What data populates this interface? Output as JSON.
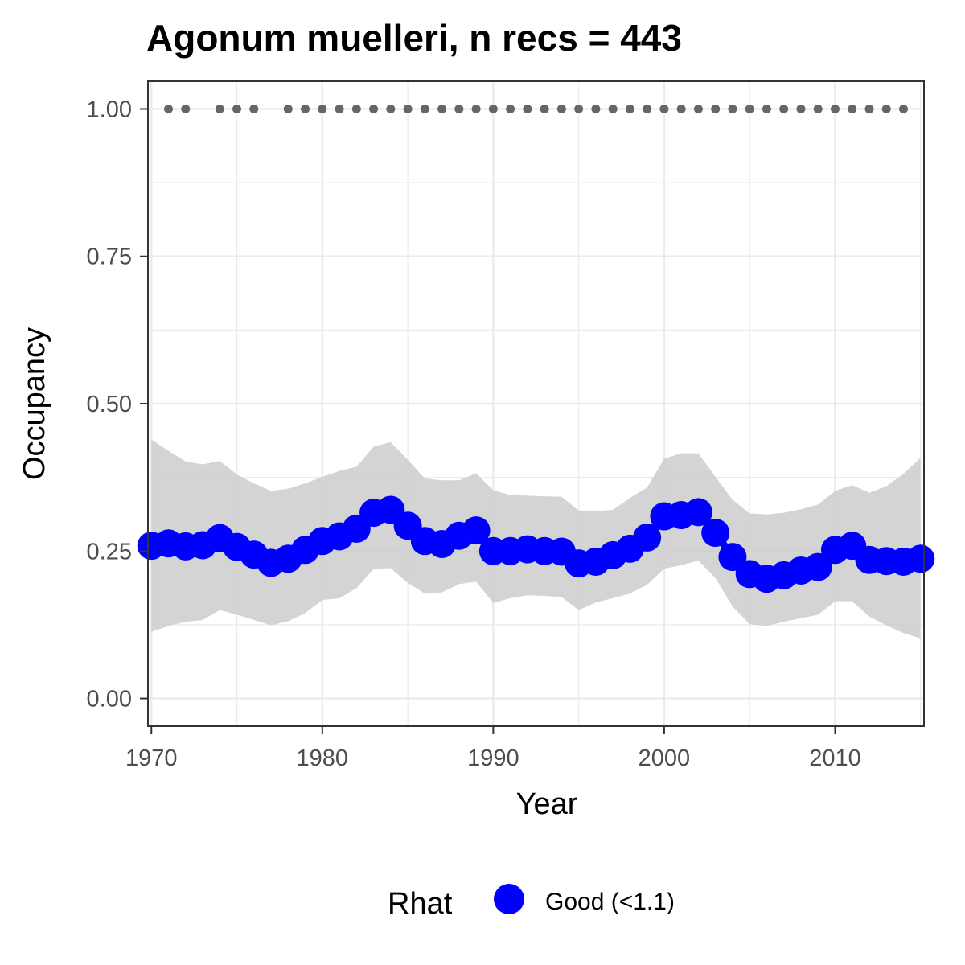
{
  "chart_data": {
    "type": "line",
    "title": "Agonum muelleri, n recs = 443",
    "xlabel": "Year",
    "ylabel": "Occupancy",
    "xlim": [
      1969.8,
      2015.2
    ],
    "ylim": [
      -0.047,
      1.047
    ],
    "x_ticks": [
      1970,
      1980,
      1990,
      2000,
      2010
    ],
    "y_ticks": [
      0.0,
      0.25,
      0.5,
      0.75,
      1.0
    ],
    "y_tick_labels": [
      "0.00",
      "0.25",
      "0.50",
      "0.75",
      "1.00"
    ],
    "grid": true,
    "legend": {
      "title": "Rhat",
      "placement": "bottom",
      "entries": [
        {
          "label": "Good (<1.1)",
          "color": "#0000ff"
        }
      ]
    },
    "series": [
      {
        "kind": "line-points",
        "color": "#0000ff",
        "x": [
          1970,
          1971,
          1972,
          1973,
          1974,
          1975,
          1976,
          1977,
          1978,
          1979,
          1980,
          1981,
          1982,
          1983,
          1984,
          1985,
          1986,
          1987,
          1988,
          1989,
          1990,
          1991,
          1992,
          1993,
          1994,
          1995,
          1996,
          1997,
          1998,
          1999,
          2000,
          2001,
          2002,
          2003,
          2004,
          2005,
          2006,
          2007,
          2008,
          2009,
          2010,
          2011,
          2012,
          2013,
          2014,
          2015
        ],
        "y": [
          0.259,
          0.263,
          0.258,
          0.26,
          0.272,
          0.257,
          0.244,
          0.23,
          0.237,
          0.252,
          0.267,
          0.275,
          0.288,
          0.315,
          0.32,
          0.293,
          0.267,
          0.262,
          0.276,
          0.285,
          0.25,
          0.25,
          0.253,
          0.25,
          0.249,
          0.229,
          0.232,
          0.243,
          0.254,
          0.273,
          0.309,
          0.311,
          0.316,
          0.281,
          0.24,
          0.211,
          0.203,
          0.209,
          0.217,
          0.223,
          0.252,
          0.259,
          0.235,
          0.233,
          0.232,
          0.237
        ],
        "lower": [
          0.113,
          0.123,
          0.13,
          0.133,
          0.15,
          0.142,
          0.133,
          0.124,
          0.131,
          0.145,
          0.167,
          0.17,
          0.187,
          0.22,
          0.221,
          0.196,
          0.178,
          0.18,
          0.194,
          0.198,
          0.162,
          0.17,
          0.175,
          0.174,
          0.172,
          0.15,
          0.163,
          0.17,
          0.178,
          0.193,
          0.22,
          0.226,
          0.234,
          0.204,
          0.156,
          0.126,
          0.123,
          0.13,
          0.136,
          0.142,
          0.165,
          0.165,
          0.139,
          0.124,
          0.111,
          0.102
        ],
        "upper": [
          0.439,
          0.42,
          0.402,
          0.397,
          0.403,
          0.38,
          0.365,
          0.352,
          0.356,
          0.365,
          0.376,
          0.386,
          0.393,
          0.427,
          0.435,
          0.405,
          0.373,
          0.37,
          0.37,
          0.382,
          0.353,
          0.345,
          0.344,
          0.343,
          0.342,
          0.319,
          0.318,
          0.32,
          0.34,
          0.358,
          0.407,
          0.416,
          0.416,
          0.376,
          0.337,
          0.314,
          0.312,
          0.315,
          0.321,
          0.329,
          0.352,
          0.362,
          0.349,
          0.36,
          0.381,
          0.408
        ]
      },
      {
        "kind": "record-points",
        "color": "#666666",
        "x": [
          1971,
          1972,
          1974,
          1975,
          1976,
          1978,
          1979,
          1980,
          1981,
          1982,
          1983,
          1984,
          1985,
          1986,
          1987,
          1988,
          1989,
          1990,
          1991,
          1992,
          1993,
          1994,
          1995,
          1996,
          1997,
          1998,
          1999,
          2000,
          2001,
          2002,
          2003,
          2004,
          2005,
          2006,
          2007,
          2008,
          2009,
          2010,
          2011,
          2012,
          2013,
          2014
        ],
        "y": 1.0
      }
    ]
  }
}
